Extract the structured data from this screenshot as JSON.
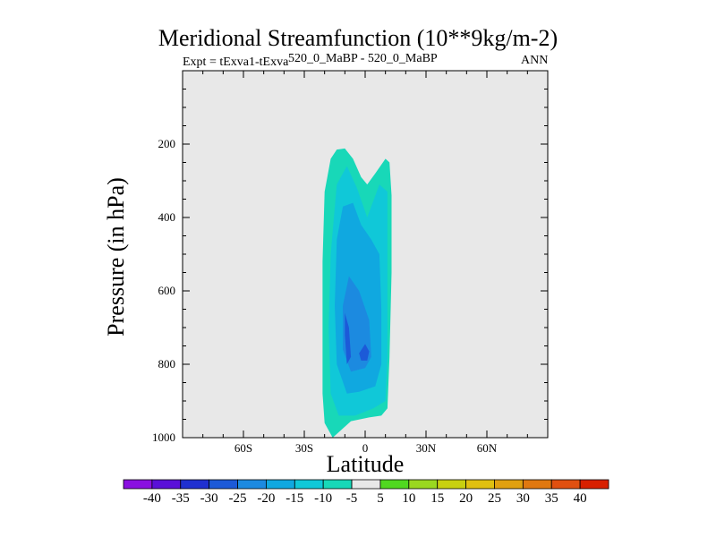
{
  "chart_data": {
    "type": "contour",
    "title": "Meridional Streamfunction (10**9kg/m-2)",
    "expt_label": "Expt = tExva1-tExva",
    "subtitle": "520_0_MaBP - 520_0_MaBP",
    "season": "ANN",
    "xlabel": "Latitude",
    "ylabel": "Pressure (in hPa)",
    "x_ticks": [
      {
        "value": -60,
        "label": "60S"
      },
      {
        "value": -30,
        "label": "30S"
      },
      {
        "value": 0,
        "label": "0"
      },
      {
        "value": 30,
        "label": "30N"
      },
      {
        "value": 60,
        "label": "60N"
      }
    ],
    "y_ticks": [
      {
        "value": 200,
        "label": "200"
      },
      {
        "value": 400,
        "label": "400"
      },
      {
        "value": 600,
        "label": "600"
      },
      {
        "value": 800,
        "label": "800"
      },
      {
        "value": 1000,
        "label": "1000"
      }
    ],
    "xlim": [
      -90,
      90
    ],
    "ylim": [
      1000,
      0
    ],
    "background_color": "#e8e8e8",
    "colorbar": {
      "labels": [
        "-40",
        "-35",
        "-30",
        "-25",
        "-20",
        "-15",
        "-10",
        "-5",
        "5",
        "10",
        "15",
        "20",
        "25",
        "30",
        "35",
        "40"
      ],
      "colors": [
        "#8a10e0",
        "#5a10d8",
        "#2030d0",
        "#1c5ad8",
        "#1c8ae0",
        "#10a8e0",
        "#10c8d8",
        "#18d8b8",
        "#e8e8e8",
        "#50d820",
        "#9ad820",
        "#c8d010",
        "#e0c010",
        "#e0a010",
        "#e07810",
        "#e05010",
        "#d82000"
      ]
    },
    "contours": [
      {
        "name": "level--5",
        "color": "#18d8b8",
        "points": [
          [
            -16,
            1000
          ],
          [
            -20,
            960
          ],
          [
            -21,
            880
          ],
          [
            -21,
            720
          ],
          [
            -21,
            520
          ],
          [
            -20,
            330
          ],
          [
            -17,
            240
          ],
          [
            -14,
            215
          ],
          [
            -10,
            212
          ],
          [
            -6,
            240
          ],
          [
            -2,
            290
          ],
          [
            1,
            310
          ],
          [
            5,
            280
          ],
          [
            10,
            240
          ],
          [
            12,
            250
          ],
          [
            13,
            340
          ],
          [
            13,
            550
          ],
          [
            12,
            780
          ],
          [
            11,
            920
          ],
          [
            8,
            940
          ],
          [
            2,
            945
          ],
          [
            -7,
            955
          ]
        ]
      },
      {
        "name": "level--10",
        "color": "#10c8d8",
        "points": [
          [
            -13,
            940
          ],
          [
            -17,
            880
          ],
          [
            -18,
            700
          ],
          [
            -17,
            500
          ],
          [
            -14,
            310
          ],
          [
            -9,
            260
          ],
          [
            -4,
            320
          ],
          [
            1,
            400
          ],
          [
            7,
            310
          ],
          [
            11,
            330
          ],
          [
            11,
            520
          ],
          [
            11,
            780
          ],
          [
            10,
            900
          ],
          [
            4,
            920
          ],
          [
            -5,
            940
          ]
        ]
      },
      {
        "name": "level--15",
        "color": "#10a8e0",
        "points": [
          [
            -9,
            880
          ],
          [
            -14,
            800
          ],
          [
            -15,
            640
          ],
          [
            -14,
            460
          ],
          [
            -11,
            370
          ],
          [
            -6,
            360
          ],
          [
            -2,
            420
          ],
          [
            3,
            460
          ],
          [
            7,
            500
          ],
          [
            8,
            650
          ],
          [
            8,
            800
          ],
          [
            5,
            860
          ],
          [
            -3,
            875
          ]
        ]
      },
      {
        "name": "level--20",
        "color": "#1c8ae0",
        "points": [
          [
            -7,
            820
          ],
          [
            -11,
            760
          ],
          [
            -11,
            640
          ],
          [
            -8,
            560
          ],
          [
            -3,
            600
          ],
          [
            2,
            680
          ],
          [
            3,
            780
          ],
          [
            0,
            810
          ]
        ]
      },
      {
        "name": "level--25a",
        "color": "#1c5ad8",
        "points": [
          [
            -9,
            800
          ],
          [
            -10,
            720
          ],
          [
            -10,
            660
          ],
          [
            -8,
            700
          ],
          [
            -7,
            780
          ]
        ]
      },
      {
        "name": "level--25b",
        "color": "#1c5ad8",
        "points": [
          [
            -2,
            790
          ],
          [
            -3,
            770
          ],
          [
            0,
            745
          ],
          [
            2,
            765
          ],
          [
            1,
            790
          ]
        ]
      }
    ]
  }
}
